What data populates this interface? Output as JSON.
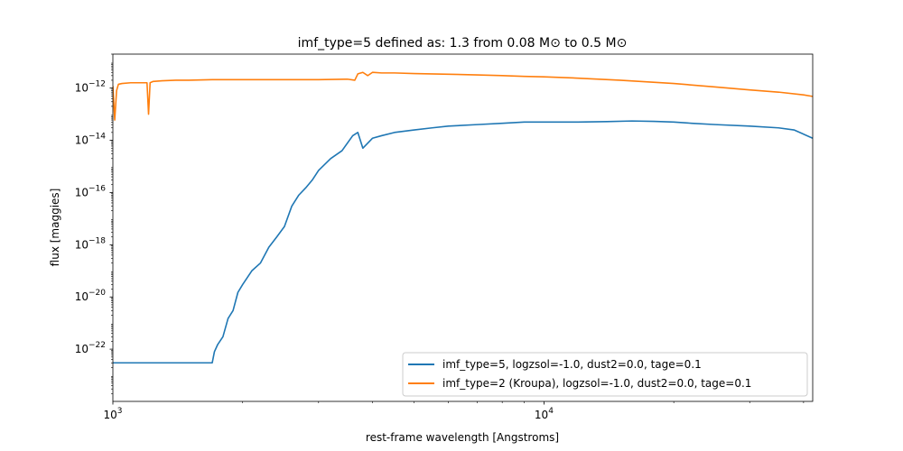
{
  "chart_data": {
    "type": "line",
    "title": "imf_type=5 defined as: 1.3 from 0.08 M⊙ to 0.5 M⊙",
    "xlabel": "rest-frame wavelength [Angstroms]",
    "ylabel": "flux [maggies]",
    "xscale": "log",
    "yscale": "log",
    "xlim": [
      1000,
      42000
    ],
    "ylim": [
      1e-24,
      2e-11
    ],
    "xticks": [
      {
        "value": 1000,
        "base": "10",
        "exp": "3"
      },
      {
        "value": 10000,
        "base": "10",
        "exp": "4"
      }
    ],
    "yticks": [
      {
        "value": 1e-22,
        "base": "10",
        "exp": "−22"
      },
      {
        "value": 1e-20,
        "base": "10",
        "exp": "−20"
      },
      {
        "value": 1e-18,
        "base": "10",
        "exp": "−18"
      },
      {
        "value": 1e-16,
        "base": "10",
        "exp": "−16"
      },
      {
        "value": 1e-14,
        "base": "10",
        "exp": "−14"
      },
      {
        "value": 1e-12,
        "base": "10",
        "exp": "−12"
      }
    ],
    "legend_position": "lower-right",
    "series": [
      {
        "name": "imf_type=5, logzsol=-1.0, dust2=0.0, tage=0.1",
        "color": "#1f77b4",
        "x": [
          1000,
          1020,
          1050,
          1100,
          1150,
          1200,
          1250,
          1300,
          1400,
          1500,
          1600,
          1680,
          1700,
          1720,
          1750,
          1800,
          1850,
          1900,
          1950,
          2000,
          2100,
          2200,
          2300,
          2400,
          2500,
          2600,
          2700,
          2800,
          2900,
          3000,
          3200,
          3400,
          3600,
          3700,
          3800,
          4000,
          4200,
          4500,
          5000,
          5500,
          6000,
          7000,
          8000,
          9000,
          10000,
          12000,
          14000,
          16000,
          18000,
          20000,
          22000,
          25000,
          30000,
          35000,
          38000,
          42000
        ],
        "y": [
          3e-23,
          3e-23,
          3e-23,
          3e-23,
          3e-23,
          3e-23,
          3e-23,
          3e-23,
          3e-23,
          3e-23,
          3e-23,
          3e-23,
          3e-23,
          8e-23,
          1.5e-22,
          3e-22,
          1.5e-21,
          3e-21,
          1.5e-20,
          3e-20,
          1e-19,
          2e-19,
          8e-19,
          2e-18,
          5e-18,
          3e-17,
          8e-17,
          1.5e-16,
          3e-16,
          7e-16,
          2e-15,
          4e-15,
          1.5e-14,
          2e-14,
          5e-15,
          1.2e-14,
          1.5e-14,
          2e-14,
          2.5e-14,
          3e-14,
          3.5e-14,
          4e-14,
          4.5e-14,
          5e-14,
          5e-14,
          5e-14,
          5.2e-14,
          5.5e-14,
          5.3e-14,
          5e-14,
          4.5e-14,
          4e-14,
          3.5e-14,
          3e-14,
          2.5e-14,
          1.2e-14
        ]
      },
      {
        "name": "imf_type=2 (Kroupa), logzsol=-1.0, dust2=0.0, tage=0.1",
        "color": "#ff7f0e",
        "x": [
          1000,
          1010,
          1020,
          1030,
          1050,
          1100,
          1150,
          1200,
          1210,
          1220,
          1240,
          1300,
          1400,
          1500,
          1700,
          2000,
          2500,
          3000,
          3500,
          3640,
          3700,
          3800,
          3900,
          4000,
          4200,
          4500,
          5000,
          6000,
          7000,
          8000,
          9000,
          10000,
          12000,
          15000,
          20000,
          25000,
          30000,
          35000,
          40000,
          42000
        ],
        "y": [
          1.2e-12,
          6e-14,
          8e-13,
          1.4e-12,
          1.5e-12,
          1.6e-12,
          1.6e-12,
          1.6e-12,
          1e-13,
          1.6e-12,
          1.8e-12,
          1.9e-12,
          2e-12,
          2e-12,
          2.1e-12,
          2.1e-12,
          2.1e-12,
          2.1e-12,
          2.2e-12,
          2e-12,
          3.5e-12,
          4e-12,
          3e-12,
          4e-12,
          3.8e-12,
          3.8e-12,
          3.6e-12,
          3.4e-12,
          3.2e-12,
          3e-12,
          2.8e-12,
          2.7e-12,
          2.4e-12,
          2e-12,
          1.5e-12,
          1.1e-12,
          8.5e-13,
          7e-13,
          5.5e-13,
          4.8e-13
        ]
      }
    ]
  }
}
